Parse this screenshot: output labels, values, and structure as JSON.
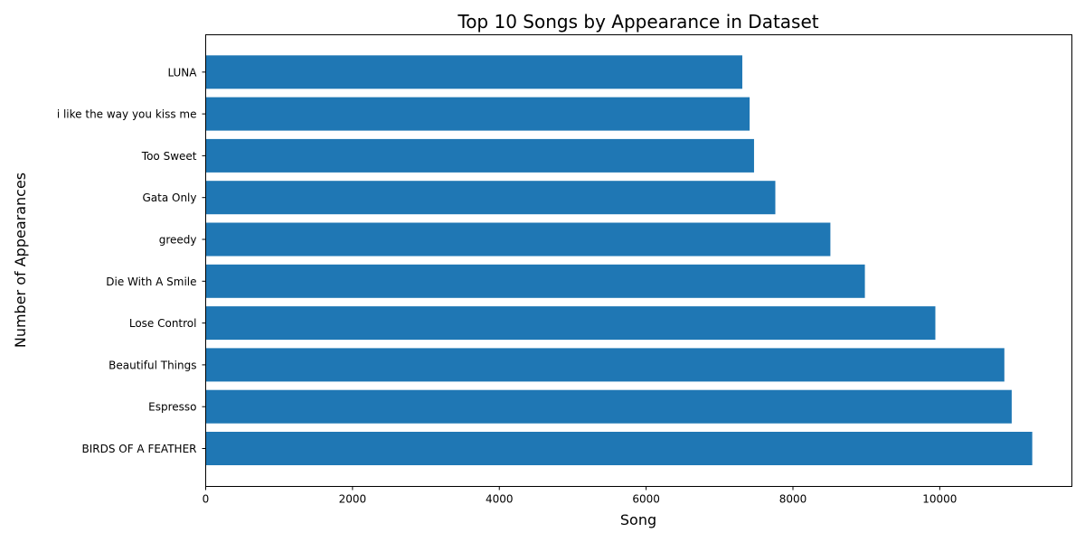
{
  "chart_data": {
    "type": "bar",
    "orientation": "horizontal",
    "title": "Top 10 Songs by Appearance in Dataset",
    "xlabel": "Song",
    "ylabel": "Number of Appearances",
    "categories": [
      "BIRDS OF A FEATHER",
      "Espresso",
      "Beautiful Things",
      "Lose Control",
      "Die With A Smile",
      "greedy",
      "Gata Only",
      "Too Sweet",
      "i like the way you kiss me",
      "LUNA"
    ],
    "values": [
      11260,
      10980,
      10880,
      9940,
      8980,
      8510,
      7760,
      7470,
      7410,
      7310
    ],
    "xlim": [
      0,
      11800
    ],
    "xticks": [
      0,
      2000,
      4000,
      6000,
      8000,
      10000
    ],
    "bar_color": "#1f77b4",
    "grid": false,
    "legend": "none"
  }
}
